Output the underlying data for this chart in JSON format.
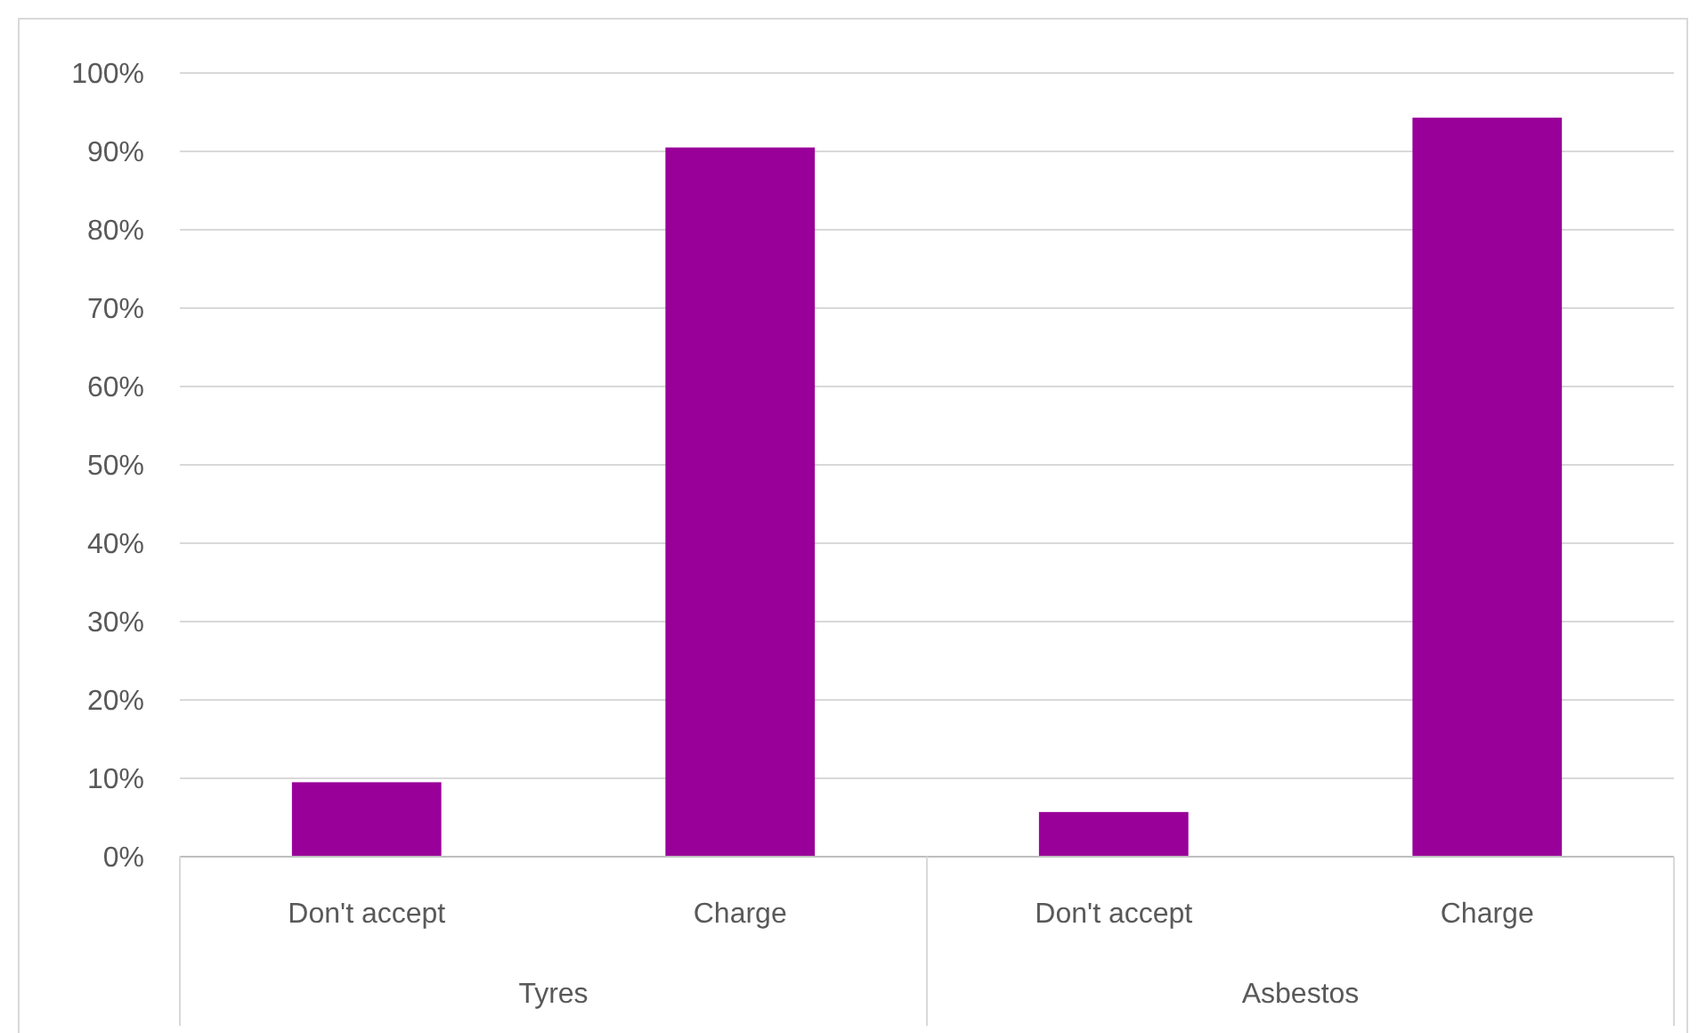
{
  "chart_data": {
    "type": "bar",
    "categories": [
      "Don't accept",
      "Charge",
      "Don't accept",
      "Charge"
    ],
    "values": [
      9.5,
      90.5,
      5.7,
      94.3
    ],
    "color": "#990099",
    "ylim": [
      0,
      100
    ],
    "yticks": [
      {
        "value": 0,
        "label": "0%"
      },
      {
        "value": 10,
        "label": "10%"
      },
      {
        "value": 20,
        "label": "20%"
      },
      {
        "value": 30,
        "label": "30%"
      },
      {
        "value": 40,
        "label": "40%"
      },
      {
        "value": 50,
        "label": "50%"
      },
      {
        "value": 60,
        "label": "60%"
      },
      {
        "value": 70,
        "label": "70%"
      },
      {
        "value": 80,
        "label": "80%"
      },
      {
        "value": 90,
        "label": "90%"
      },
      {
        "value": 100,
        "label": "100%"
      }
    ],
    "grid": "y",
    "annotations": [
      "Tyres",
      "Asbestos"
    ]
  }
}
